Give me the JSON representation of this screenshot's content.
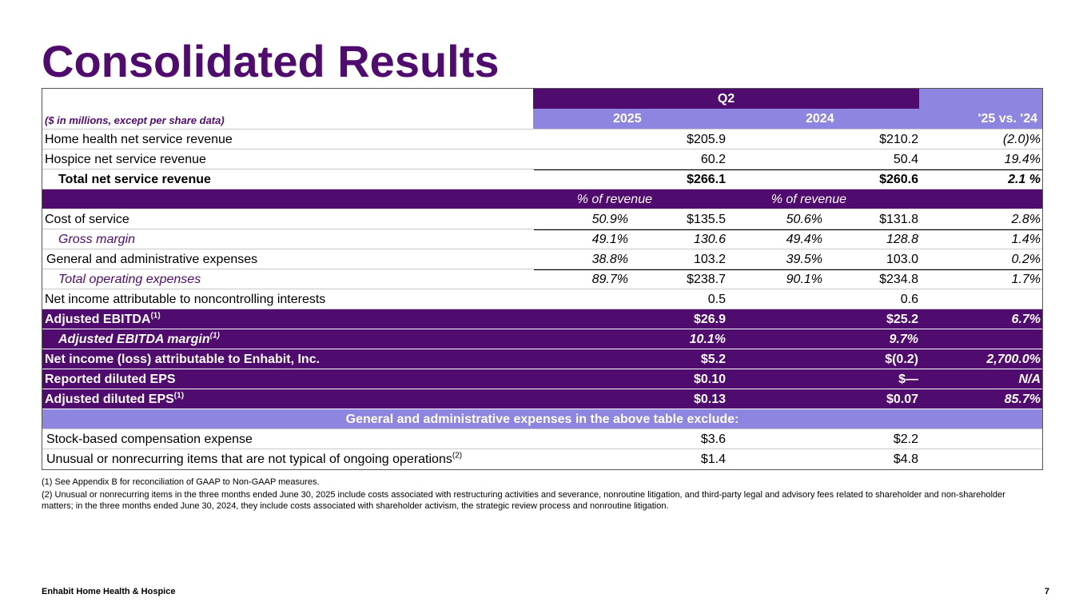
{
  "title": "Consolidated Results",
  "header": {
    "units": "($ in millions, except per share data)",
    "period": "Q2",
    "year1": "2025",
    "year2": "2024",
    "change": "'25 vs. '24"
  },
  "rows": {
    "home_health": {
      "label": "Home health net service revenue",
      "v1": "$205.9",
      "v2": "$210.2",
      "chg": "(2.0)%"
    },
    "hospice": {
      "label": "Hospice net service revenue",
      "v1": "60.2",
      "v2": "50.4",
      "chg": "19.4%"
    },
    "total_rev": {
      "label": "Total net service revenue",
      "v1": "$266.1",
      "v2": "$260.6",
      "chg": "2.1 %"
    },
    "pct_header": {
      "p1": "% of revenue",
      "p2": "% of revenue"
    },
    "cost": {
      "label": "Cost of service",
      "p1": "50.9%",
      "v1": "$135.5",
      "p2": "50.6%",
      "v2": "$131.8",
      "chg": "2.8%"
    },
    "gross": {
      "label": "Gross margin",
      "p1": "49.1%",
      "v1": "130.6",
      "p2": "49.4%",
      "v2": "128.8",
      "chg": "1.4%"
    },
    "ga": {
      "label": "General and administrative expenses",
      "p1": "38.8%",
      "v1": "103.2",
      "p2": "39.5%",
      "v2": "103.0",
      "chg": "0.2%"
    },
    "total_opex": {
      "label": "Total operating expenses",
      "p1": "89.7%",
      "v1": "$238.7",
      "p2": "90.1%",
      "v2": "$234.8",
      "chg": "1.7%"
    },
    "nci": {
      "label": "Net income attributable to noncontrolling interests",
      "v1": "0.5",
      "v2": "0.6"
    },
    "ebitda": {
      "label": "Adjusted EBITDA",
      "sup": "(1)",
      "v1": "$26.9",
      "v2": "$25.2",
      "chg": "6.7%"
    },
    "ebitda_margin": {
      "label": "Adjusted EBITDA margin",
      "sup": "(1)",
      "v1": "10.1%",
      "v2": "9.7%"
    },
    "net_income": {
      "label": "Net income (loss) attributable to Enhabit, Inc.",
      "v1": "$5.2",
      "v2": "$(0.2)",
      "chg": "2,700.0%"
    },
    "reported_eps": {
      "label": "Reported diluted EPS",
      "v1": "$0.10",
      "v2": "$—",
      "chg": "N/A"
    },
    "adjusted_eps": {
      "label": "Adjusted diluted EPS",
      "sup": "(1)",
      "v1": "$0.13",
      "v2": "$0.07",
      "chg": "85.7%"
    },
    "exclude_header": {
      "label": "General and administrative expenses in the above table exclude:"
    },
    "stock_comp": {
      "label": "Stock-based compensation expense",
      "v1": "$3.6",
      "v2": "$2.2"
    },
    "unusual": {
      "label": "Unusual or nonrecurring items that are not typical of ongoing operations",
      "sup": "(2)",
      "v1": "$1.4",
      "v2": "$4.8"
    }
  },
  "notes": {
    "n1": "(1) See Appendix B for reconciliation of GAAP to Non-GAAP measures.",
    "n2": "(2) Unusual or nonrecurring items in the three months ended June 30, 2025 include costs associated with restructuring activities and severance, nonroutine litigation, and third-party legal and advisory fees related to shareholder and non-shareholder matters; in the three months ended June 30, 2024, they include costs associated with shareholder activism, the strategic review process and nonroutine litigation."
  },
  "footer": {
    "company": "Enhabit Home Health & Hospice",
    "page": "7"
  }
}
